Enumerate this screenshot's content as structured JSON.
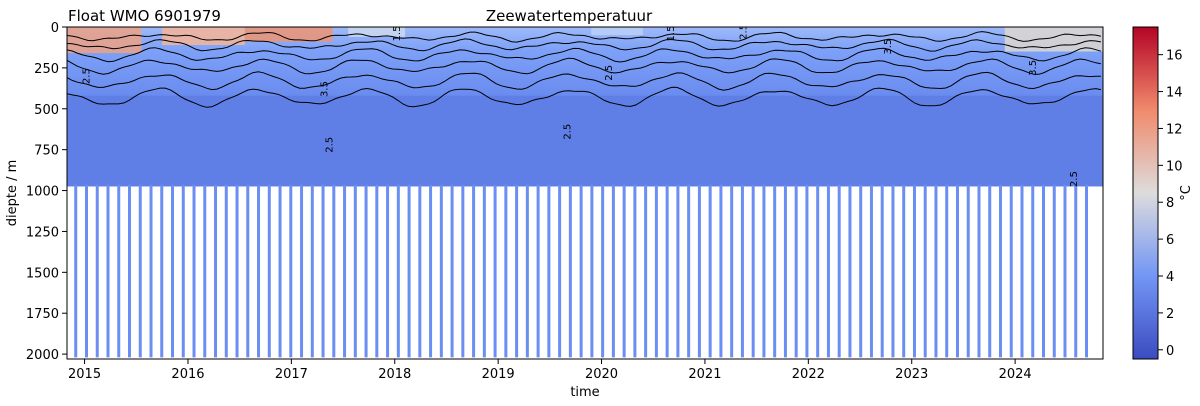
{
  "chart_data": {
    "type": "heatmap",
    "title": "Zeewatertemperatuur",
    "subtitle": "Float WMO 6901979",
    "xlabel": "time",
    "ylabel": "diepte / m",
    "colorbar_label": "°C",
    "x_ticks": [
      "2015",
      "2016",
      "2017",
      "2018",
      "2019",
      "2020",
      "2021",
      "2022",
      "2023",
      "2024"
    ],
    "x_range": [
      2014.83,
      2024.85
    ],
    "y_ticks": [
      0,
      250,
      500,
      750,
      1000,
      1250,
      1500,
      1750,
      2000
    ],
    "y_range": [
      2030,
      0
    ],
    "y_inverted": true,
    "colorbar_ticks": [
      0,
      2,
      4,
      6,
      8,
      10,
      12,
      14,
      16
    ],
    "colorbar_range": [
      -0.5,
      17.5
    ],
    "colormap": "coolwarm",
    "contour_labels": [
      "2.5",
      "3.5",
      "1.5",
      "2.5",
      "2.5",
      "2.5",
      "1.5",
      "2.5",
      "3.5",
      "3.5",
      "2.5"
    ],
    "grid": false
  }
}
